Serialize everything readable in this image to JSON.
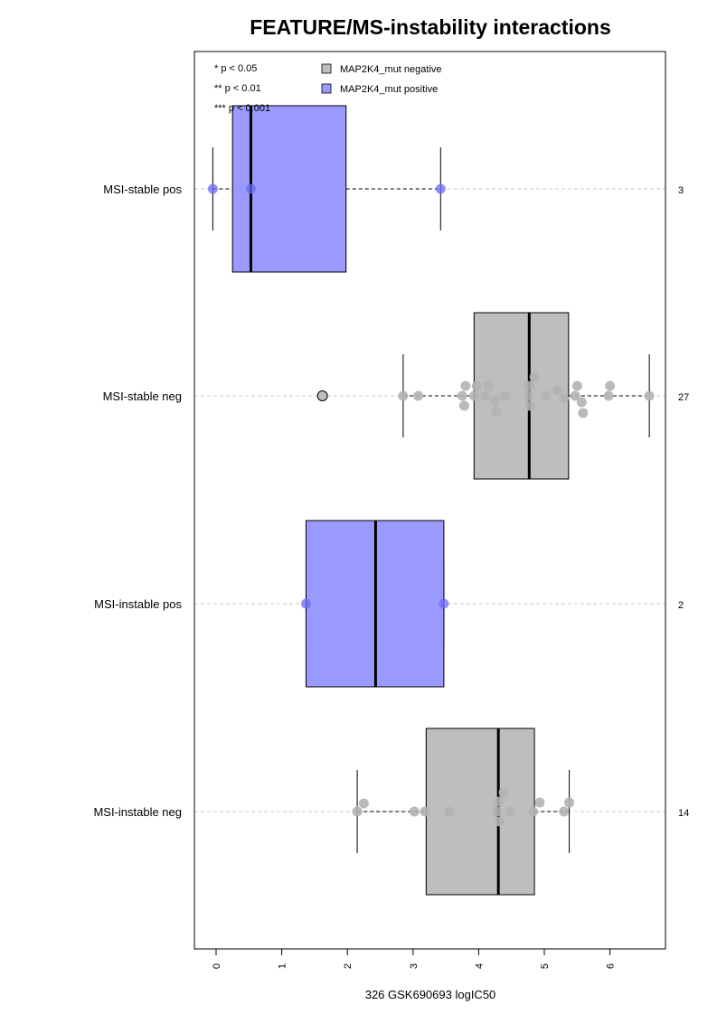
{
  "chart_data": {
    "type": "box",
    "title": "FEATURE/MS-instability interactions",
    "xlabel": "326 GSK690693 logIC50",
    "xlim": [
      -0.3,
      6.9
    ],
    "xticks": [
      0,
      1,
      2,
      3,
      4,
      5,
      6
    ],
    "grid": "dashed horizontal lines at each group",
    "significance_legend": [
      "* p < 0.05",
      "** p < 0.01",
      "*** p < 0.001"
    ],
    "legend": [
      {
        "label": "MAP2K4_mut negative",
        "color": "#bebebe"
      },
      {
        "label": "MAP2K4_mut positive",
        "color": "#9999ff"
      }
    ],
    "colors": {
      "negative_box": "#bebebe",
      "positive_box": "#9999ff",
      "negative_point": "#b3b3b3",
      "positive_point": "#6b6bf5"
    },
    "groups": [
      {
        "label": "MSI-stable pos",
        "n": "3",
        "mutation": "positive",
        "whisker_low": -0.05,
        "q1": 0.25,
        "median": 0.53,
        "q3": 1.98,
        "whisker_high": 3.42,
        "outliers": [],
        "points": [
          {
            "x": -0.05,
            "dy": 0
          },
          {
            "x": 0.53,
            "dy": 0
          },
          {
            "x": 3.42,
            "dy": 0
          }
        ]
      },
      {
        "label": "MSI-stable neg",
        "n": "27",
        "mutation": "negative",
        "whisker_low": 2.85,
        "q1": 3.93,
        "median": 4.77,
        "q3": 5.37,
        "whisker_high": 6.6,
        "outliers": [
          1.62
        ],
        "points": [
          {
            "x": 2.85,
            "dy": 0
          },
          {
            "x": 3.08,
            "dy": 0
          },
          {
            "x": 3.75,
            "dy": 0
          },
          {
            "x": 3.8,
            "dy": -11
          },
          {
            "x": 3.78,
            "dy": 11
          },
          {
            "x": 3.93,
            "dy": 0
          },
          {
            "x": 3.97,
            "dy": -11
          },
          {
            "x": 4.1,
            "dy": 0
          },
          {
            "x": 4.15,
            "dy": -11
          },
          {
            "x": 4.25,
            "dy": 5
          },
          {
            "x": 4.27,
            "dy": 17
          },
          {
            "x": 4.4,
            "dy": 0
          },
          {
            "x": 4.76,
            "dy": 0
          },
          {
            "x": 4.77,
            "dy": -11
          },
          {
            "x": 4.78,
            "dy": 11
          },
          {
            "x": 4.85,
            "dy": -21
          },
          {
            "x": 5.02,
            "dy": 0
          },
          {
            "x": 5.2,
            "dy": -6
          },
          {
            "x": 5.3,
            "dy": 3
          },
          {
            "x": 5.47,
            "dy": 0
          },
          {
            "x": 5.5,
            "dy": -11
          },
          {
            "x": 5.57,
            "dy": 7
          },
          {
            "x": 5.59,
            "dy": 19
          },
          {
            "x": 5.98,
            "dy": 0
          },
          {
            "x": 6.0,
            "dy": -11
          },
          {
            "x": 6.6,
            "dy": 0
          }
        ]
      },
      {
        "label": "MSI-instable pos",
        "n": "2",
        "mutation": "positive",
        "whisker_low": 1.37,
        "q1": 1.37,
        "median": 2.43,
        "q3": 3.47,
        "whisker_high": 3.47,
        "outliers": [],
        "points": [
          {
            "x": 1.37,
            "dy": 0
          },
          {
            "x": 3.47,
            "dy": 0
          }
        ]
      },
      {
        "label": "MSI-instable neg",
        "n": "14",
        "mutation": "negative",
        "whisker_low": 2.15,
        "q1": 3.2,
        "median": 4.3,
        "q3": 4.85,
        "whisker_high": 5.38,
        "outliers": [],
        "points": [
          {
            "x": 2.15,
            "dy": 0
          },
          {
            "x": 2.25,
            "dy": -9
          },
          {
            "x": 3.02,
            "dy": 0
          },
          {
            "x": 3.18,
            "dy": 0
          },
          {
            "x": 3.55,
            "dy": 0
          },
          {
            "x": 4.28,
            "dy": 0
          },
          {
            "x": 4.3,
            "dy": -11
          },
          {
            "x": 4.32,
            "dy": 11
          },
          {
            "x": 4.38,
            "dy": -21
          },
          {
            "x": 4.48,
            "dy": 0
          },
          {
            "x": 4.83,
            "dy": 0
          },
          {
            "x": 4.93,
            "dy": -10
          },
          {
            "x": 5.3,
            "dy": 0
          },
          {
            "x": 5.38,
            "dy": -10
          }
        ]
      }
    ]
  }
}
